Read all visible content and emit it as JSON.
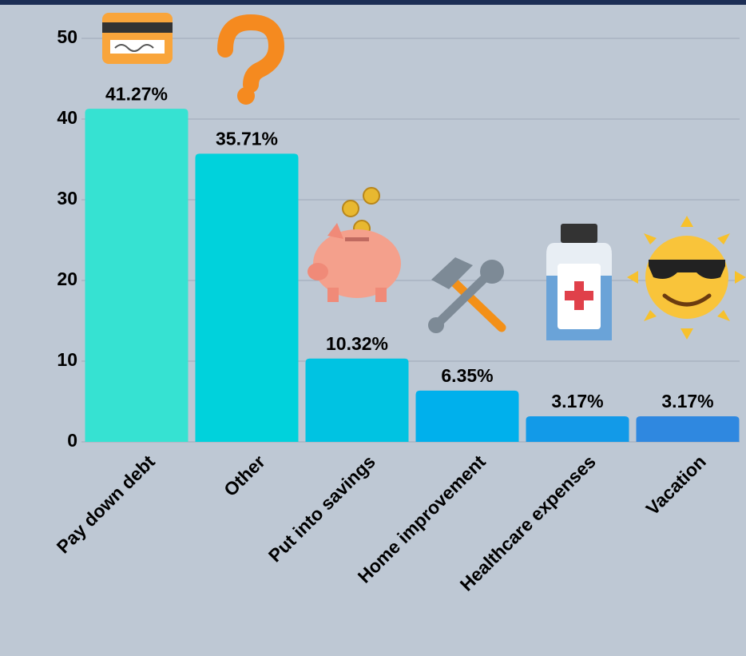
{
  "chart_data": {
    "type": "bar",
    "categories": [
      "Pay down debt",
      "Other",
      "Put into savings",
      "Home improvement",
      "Healthcare expenses",
      "Vacation"
    ],
    "values": [
      41.27,
      35.71,
      10.32,
      6.35,
      3.17,
      3.17
    ],
    "value_labels": [
      "41.27%",
      "35.71%",
      "10.32%",
      "6.35%",
      "3.17%",
      "3.17%"
    ],
    "colors": [
      "#36e2d2",
      "#00d2dc",
      "#00c3e2",
      "#00b0ec",
      "#129ae8",
      "#2f88e0"
    ],
    "ylim": [
      0,
      50
    ],
    "yticks": [
      0,
      10,
      20,
      30,
      40,
      50
    ],
    "grid": true
  }
}
